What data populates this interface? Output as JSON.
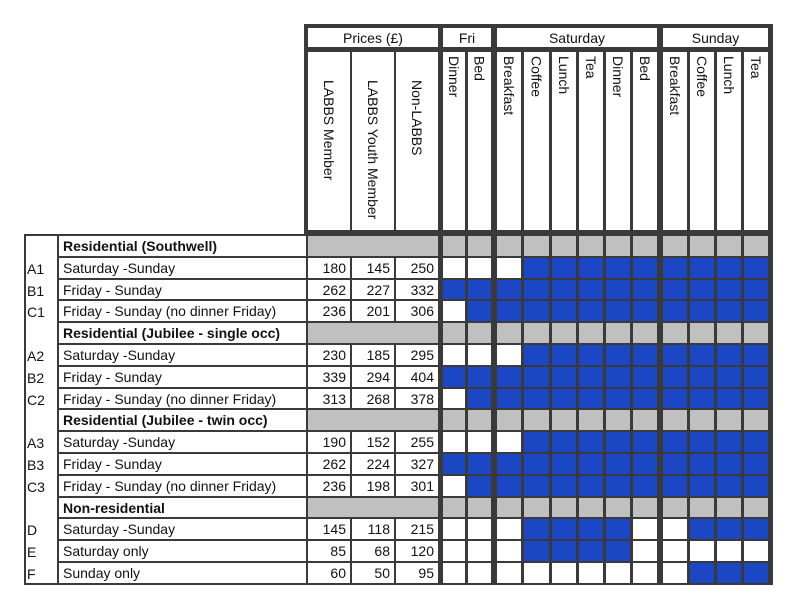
{
  "header": {
    "groups": {
      "prices": "Prices (£)",
      "fri": "Fri",
      "saturday": "Saturday",
      "sunday": "Sunday"
    },
    "price_columns": [
      "LABBS Member",
      "LABBS Youth Member",
      "Non-LABBS"
    ],
    "meal_columns": [
      "Dinner",
      "Bed",
      "Breakfast",
      "Coffee",
      "Lunch",
      "Tea",
      "Dinner",
      "Bed",
      "Breakfast",
      "Coffee",
      "Lunch",
      "Tea"
    ]
  },
  "colors": {
    "included": "#1c47c4",
    "section": "#c0c0c0",
    "empty": "#ffffff",
    "border": "#3a3a3a"
  },
  "sections": [
    {
      "title": "Residential (Southwell)",
      "rows": [
        {
          "code": "A1",
          "label": "Saturday -Sunday",
          "prices": [
            "180",
            "145",
            "250"
          ],
          "meals": [
            0,
            0,
            0,
            1,
            1,
            1,
            1,
            1,
            1,
            1,
            1,
            1
          ]
        },
        {
          "code": "B1",
          "label": "Friday - Sunday",
          "prices": [
            "262",
            "227",
            "332"
          ],
          "meals": [
            1,
            1,
            1,
            1,
            1,
            1,
            1,
            1,
            1,
            1,
            1,
            1
          ]
        },
        {
          "code": "C1",
          "label": "Friday - Sunday (no dinner Friday)",
          "prices": [
            "236",
            "201",
            "306"
          ],
          "meals": [
            0,
            1,
            1,
            1,
            1,
            1,
            1,
            1,
            1,
            1,
            1,
            1
          ]
        }
      ]
    },
    {
      "title": "Residential (Jubilee - single occ)",
      "rows": [
        {
          "code": "A2",
          "label": "Saturday -Sunday",
          "prices": [
            "230",
            "185",
            "295"
          ],
          "meals": [
            0,
            0,
            0,
            1,
            1,
            1,
            1,
            1,
            1,
            1,
            1,
            1
          ]
        },
        {
          "code": "B2",
          "label": "Friday - Sunday",
          "prices": [
            "339",
            "294",
            "404"
          ],
          "meals": [
            1,
            1,
            1,
            1,
            1,
            1,
            1,
            1,
            1,
            1,
            1,
            1
          ]
        },
        {
          "code": "C2",
          "label": "Friday - Sunday (no dinner Friday)",
          "prices": [
            "313",
            "268",
            "378"
          ],
          "meals": [
            0,
            1,
            1,
            1,
            1,
            1,
            1,
            1,
            1,
            1,
            1,
            1
          ]
        }
      ]
    },
    {
      "title": "Residential (Jubilee - twin occ)",
      "rows": [
        {
          "code": "A3",
          "label": "Saturday -Sunday",
          "prices": [
            "190",
            "152",
            "255"
          ],
          "meals": [
            0,
            0,
            0,
            1,
            1,
            1,
            1,
            1,
            1,
            1,
            1,
            1
          ]
        },
        {
          "code": "B3",
          "label": "Friday - Sunday",
          "prices": [
            "262",
            "224",
            "327"
          ],
          "meals": [
            1,
            1,
            1,
            1,
            1,
            1,
            1,
            1,
            1,
            1,
            1,
            1
          ]
        },
        {
          "code": "C3",
          "label": "Friday - Sunday (no dinner Friday)",
          "prices": [
            "236",
            "198",
            "301"
          ],
          "meals": [
            0,
            1,
            1,
            1,
            1,
            1,
            1,
            1,
            1,
            1,
            1,
            1
          ]
        }
      ]
    },
    {
      "title": "Non-residential",
      "rows": [
        {
          "code": "D",
          "label": "Saturday -Sunday",
          "prices": [
            "145",
            "118",
            "215"
          ],
          "meals": [
            0,
            0,
            0,
            1,
            1,
            1,
            1,
            0,
            0,
            1,
            1,
            1
          ]
        },
        {
          "code": "E",
          "label": "Saturday only",
          "prices": [
            "85",
            "68",
            "120"
          ],
          "meals": [
            0,
            0,
            0,
            1,
            1,
            1,
            1,
            0,
            0,
            0,
            0,
            0
          ]
        },
        {
          "code": "F",
          "label": "Sunday only",
          "prices": [
            "60",
            "50",
            "95"
          ],
          "meals": [
            0,
            0,
            0,
            0,
            0,
            0,
            0,
            0,
            0,
            1,
            1,
            1
          ]
        }
      ]
    }
  ]
}
